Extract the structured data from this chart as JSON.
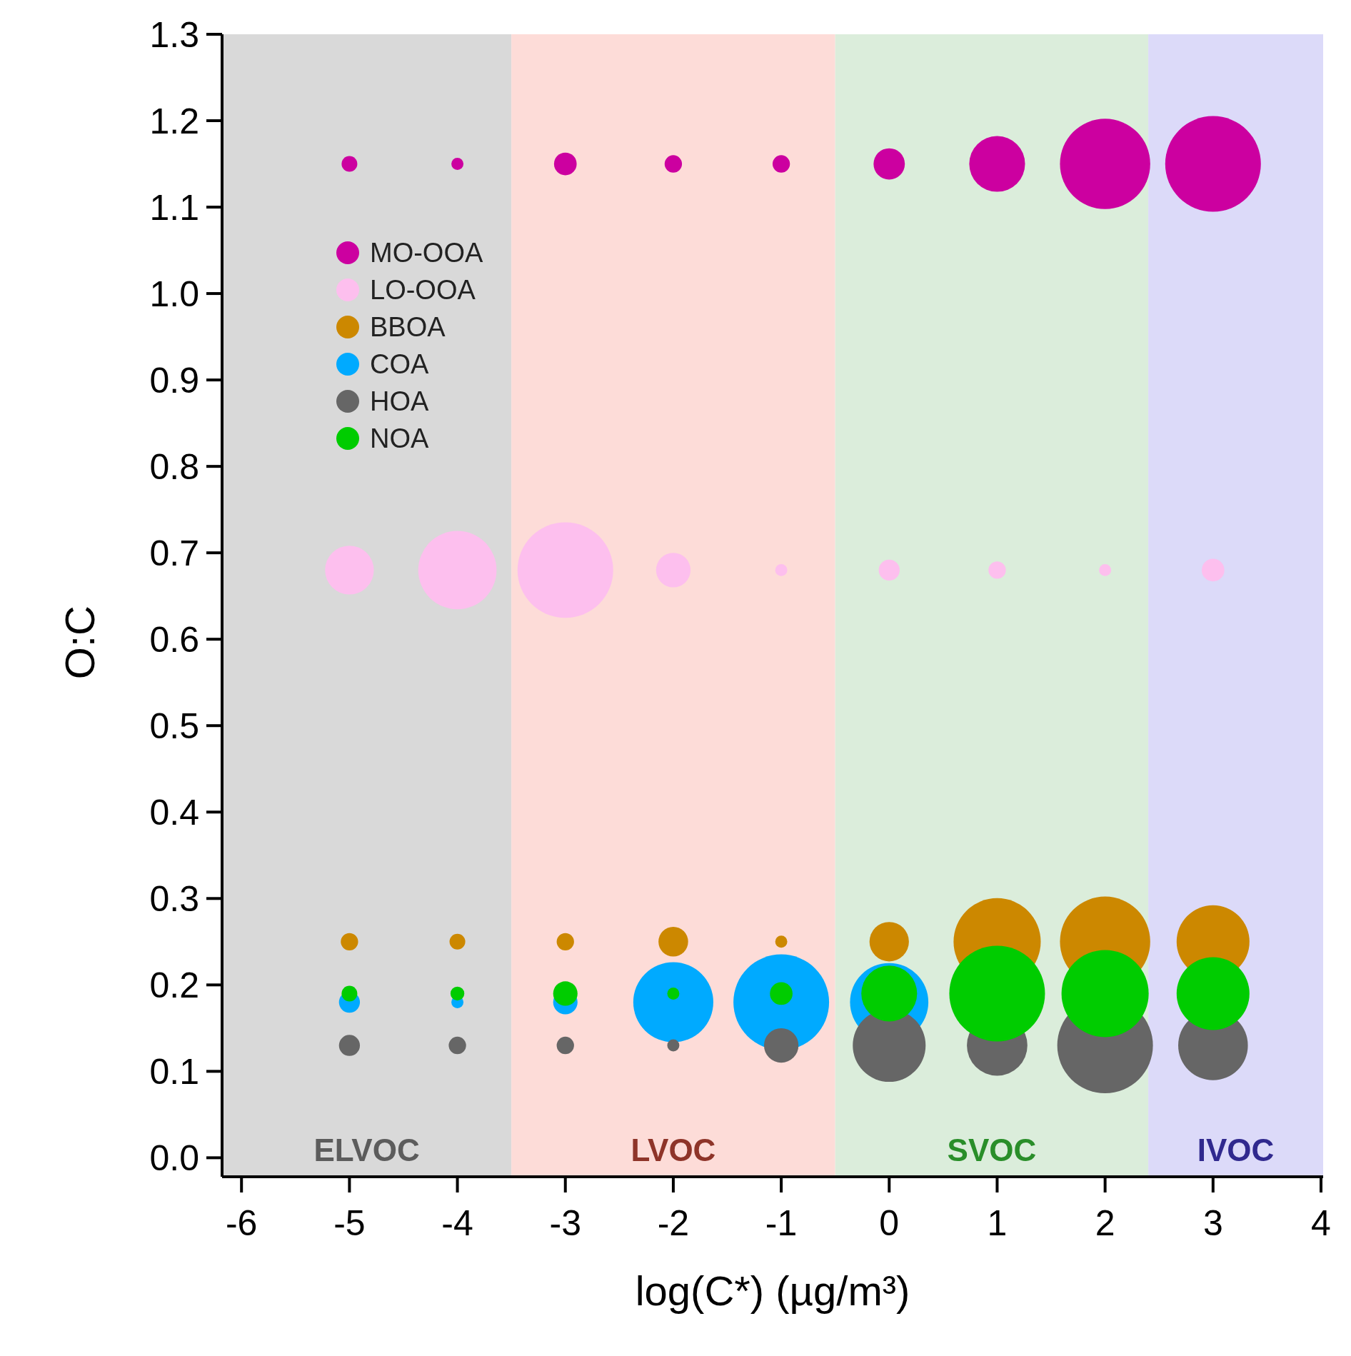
{
  "chart_data": {
    "type": "bubble",
    "xlabel": "log(C*) (µg/m³)",
    "ylabel": "O:C",
    "x": [
      -5,
      -4,
      -3,
      -2,
      -1,
      0,
      1,
      2,
      3
    ],
    "series": [
      {
        "name": "MO-OOA",
        "color": "#cc00a0",
        "values": [
          1.15,
          1.15,
          1.15,
          1.15,
          1.15,
          1.15,
          1.15,
          1.15,
          1.15
        ],
        "sizes": [
          0.027,
          0.016,
          0.056,
          0.033,
          0.033,
          0.107,
          0.34,
          0.89,
          1
        ]
      },
      {
        "name": "LO-OOA",
        "color": "#fdbfee",
        "values": [
          0.68,
          0.68,
          0.68,
          0.68,
          0.68,
          0.68,
          0.68,
          0.68,
          0.68
        ],
        "sizes": [
          0.26,
          0.67,
          1,
          0.13,
          0.016,
          0.048,
          0.033,
          0.016,
          0.056
        ]
      },
      {
        "name": "BBOA",
        "color": "#cc8800",
        "values": [
          0.25,
          0.25,
          0.25,
          0.25,
          0.25,
          0.25,
          0.25,
          0.25,
          0.25
        ],
        "sizes": [
          0.033,
          0.027,
          0.033,
          0.096,
          0.016,
          0.17,
          0.83,
          0.89,
          0.58
        ]
      },
      {
        "name": "COA",
        "color": "#00aaff",
        "values": [
          0.18,
          0.18,
          0.18,
          0.18,
          0.18,
          0.18,
          null,
          null,
          null
        ],
        "sizes": [
          0.048,
          0.016,
          0.065,
          0.7,
          1,
          0.67,
          null,
          null,
          null
        ]
      },
      {
        "name": "HOA",
        "color": "#666666",
        "values": [
          0.13,
          0.13,
          0.13,
          0.13,
          0.13,
          0.13,
          0.13,
          0.13,
          0.13
        ],
        "sizes": [
          0.048,
          0.033,
          0.033,
          0.016,
          0.13,
          0.58,
          0.4,
          1,
          0.53
        ]
      },
      {
        "name": "NOA",
        "color": "#00cc00",
        "values": [
          0.19,
          0.19,
          0.19,
          0.19,
          0.19,
          0.19,
          0.19,
          0.19,
          0.19
        ],
        "sizes": [
          0.027,
          0.021,
          0.065,
          0.016,
          0.056,
          0.34,
          1,
          0.83,
          0.58
        ]
      }
    ],
    "xlim": [
      -6.18,
      4.02
    ],
    "xticks": [
      -6,
      -5,
      -4,
      -3,
      -2,
      -1,
      0,
      1,
      2,
      3,
      4
    ],
    "ylim": [
      -0.022,
      1.3
    ],
    "yticks": [
      {
        "value": 0,
        "label": "0.0"
      },
      {
        "value": 0.1,
        "label": "0.1"
      },
      {
        "value": 0.2,
        "label": "0.2"
      },
      {
        "value": 0.3,
        "label": "0.3"
      },
      {
        "value": 0.4,
        "label": "0.4"
      },
      {
        "value": 0.5,
        "label": "0.5"
      },
      {
        "value": 0.6,
        "label": "0.6"
      },
      {
        "value": 0.7,
        "label": "0.7"
      },
      {
        "value": 0.8,
        "label": "0.8"
      },
      {
        "value": 0.9,
        "label": "0.9"
      },
      {
        "value": 1.0,
        "label": "1.0"
      },
      {
        "value": 1.1,
        "label": "1.1"
      },
      {
        "value": 1.2,
        "label": "1.2"
      },
      {
        "value": 1.3,
        "label": "1.3"
      }
    ],
    "bands": [
      {
        "axis": "x",
        "from": -6.18,
        "to": -3.5,
        "label": "ELVOC",
        "color": "#d9d9d9"
      },
      {
        "axis": "x",
        "from": -3.5,
        "to": -0.5,
        "label": "LVOC",
        "color": "#fddcd8"
      },
      {
        "axis": "x",
        "from": -0.5,
        "to": 2.4,
        "label": "SVOC",
        "color": "#dbeddb"
      },
      {
        "axis": "x",
        "from": 2.4,
        "to": 4.02,
        "label": "IVOC",
        "color": "#dcdaf9"
      }
    ],
    "grid": false,
    "legend": "top left"
  }
}
